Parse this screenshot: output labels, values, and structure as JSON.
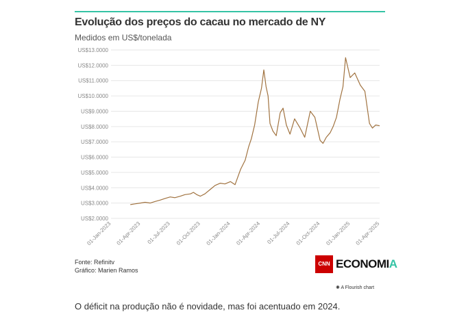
{
  "header": {
    "title": "Evolução dos preços do cacau no mercado de NY",
    "subtitle": "Medidos em US$/tonelada"
  },
  "footer": {
    "source": "Fonte: Refinitv",
    "credit": "Gráfico: Marien Ramos",
    "logo_badge": "CNN",
    "logo_text_main": "ECONOMI",
    "logo_text_last": "A",
    "flourish": "A Flourish chart"
  },
  "caption": "O déficit na produção não é novidade, mas foi acentuado em 2024.",
  "colors": {
    "line": "#a0723f",
    "accent": "#34c3a5",
    "grid": "#e6e6e6",
    "brand_red": "#cc0000"
  },
  "chart_data": {
    "type": "line",
    "grid": true,
    "ylim": [
      2000,
      13000
    ],
    "yticks": [
      "US$2.0000",
      "US$3.0000",
      "US$4.0000",
      "US$5.0000",
      "US$6.0000",
      "US$7.0000",
      "US$8.0000",
      "US$9.0000",
      "US$10.0000",
      "US$11.0000",
      "US$12.0000",
      "US$13.0000"
    ],
    "ytick_values": [
      2000,
      3000,
      4000,
      5000,
      6000,
      7000,
      8000,
      9000,
      10000,
      11000,
      12000,
      13000
    ],
    "xlim": [
      "2023-01-01",
      "2025-04-01"
    ],
    "xticks": [
      "01-Jan-2023",
      "01-Apr-2023",
      "01-Jul-2023",
      "01-Oct-2023",
      "01-Jan-2024",
      "01-Apr-2024",
      "01-Jul-2024",
      "01-Oct-2024",
      "01-Jan-2025",
      "01-Apr-2025"
    ],
    "xtick_dates": [
      "2023-01-01",
      "2023-04-01",
      "2023-07-01",
      "2023-10-01",
      "2024-01-01",
      "2024-04-01",
      "2024-07-01",
      "2024-10-01",
      "2025-01-01",
      "2025-04-01"
    ],
    "series": [
      {
        "x": [
          "2023-03-01",
          "2023-03-15",
          "2023-04-01",
          "2023-04-15",
          "2023-05-01",
          "2023-05-15",
          "2023-06-01",
          "2023-06-15",
          "2023-07-01",
          "2023-07-15",
          "2023-08-01",
          "2023-08-15",
          "2023-09-01",
          "2023-09-10",
          "2023-09-20",
          "2023-10-01",
          "2023-10-15",
          "2023-11-01",
          "2023-11-15",
          "2023-12-01",
          "2023-12-15",
          "2024-01-01",
          "2024-01-15",
          "2024-02-01",
          "2024-02-15",
          "2024-02-26",
          "2024-03-05",
          "2024-03-15",
          "2024-03-26",
          "2024-04-05",
          "2024-04-12",
          "2024-04-19",
          "2024-04-25",
          "2024-05-01",
          "2024-05-10",
          "2024-05-20",
          "2024-06-01",
          "2024-06-10",
          "2024-06-20",
          "2024-07-01",
          "2024-07-15",
          "2024-08-01",
          "2024-08-15",
          "2024-09-01",
          "2024-09-15",
          "2024-10-01",
          "2024-10-10",
          "2024-10-20",
          "2024-11-01",
          "2024-11-10",
          "2024-11-20",
          "2024-12-01",
          "2024-12-10",
          "2024-12-18",
          "2025-01-01",
          "2025-01-15",
          "2025-02-01",
          "2025-02-15",
          "2025-03-01",
          "2025-03-10",
          "2025-03-20",
          "2025-04-01"
        ],
        "y": [
          2900,
          2950,
          3000,
          3050,
          3000,
          3100,
          3200,
          3300,
          3400,
          3350,
          3450,
          3550,
          3600,
          3700,
          3550,
          3450,
          3600,
          3900,
          4150,
          4300,
          4250,
          4400,
          4200,
          5200,
          5800,
          6700,
          7200,
          8100,
          9600,
          10500,
          11700,
          10600,
          10000,
          8200,
          7700,
          7400,
          8900,
          9200,
          8100,
          7500,
          8500,
          7900,
          7300,
          9000,
          8600,
          7100,
          6900,
          7300,
          7600,
          8000,
          8600,
          9800,
          10600,
          12500,
          11200,
          11500,
          10700,
          10300,
          8200,
          7900,
          8100,
          8050
        ]
      }
    ]
  }
}
